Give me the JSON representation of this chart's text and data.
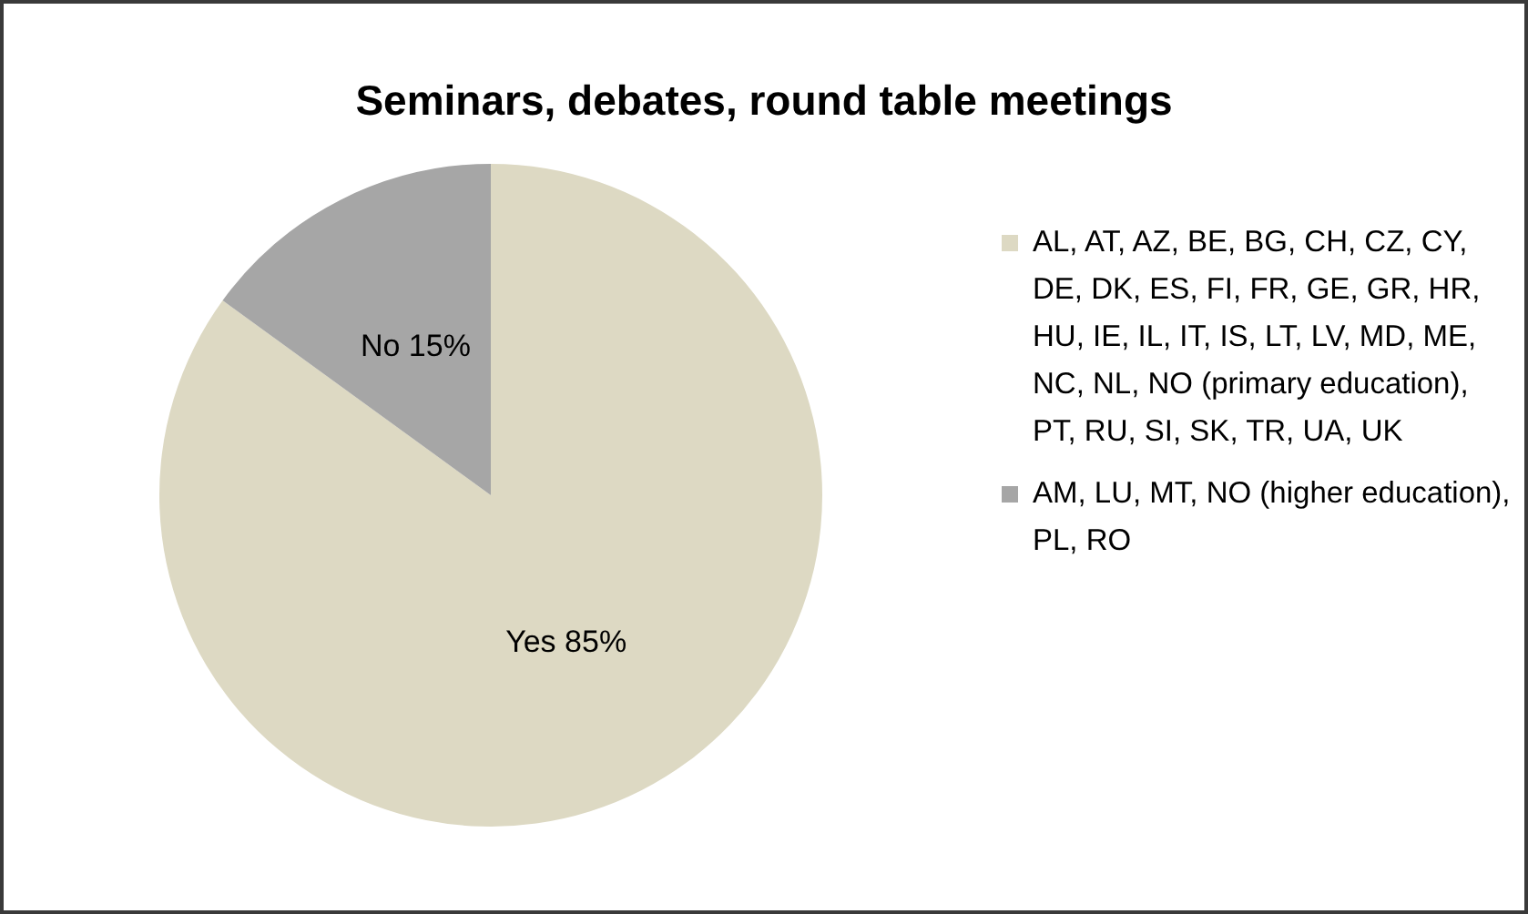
{
  "chart_data": {
    "type": "pie",
    "title": "Seminars, debates, round table meetings",
    "categories": [
      "AL, AT, AZ, BE, BG, CH, CZ, CY, DE, DK, ES, FI, FR, GE, GR, HR, HU, IE, IL, IT, IS, LT, LV, MD, ME, NC, NL, NO (primary education), PT, RU, SI, SK, TR, UA, UK",
      "AM, LU, MT, NO (higher education), PL, RO"
    ],
    "values": [
      85,
      15
    ],
    "colors": [
      "#ddd9c3",
      "#a6a6a6"
    ],
    "value_labels": [
      "Yes 85%",
      "No 15%"
    ],
    "legend": "right"
  }
}
